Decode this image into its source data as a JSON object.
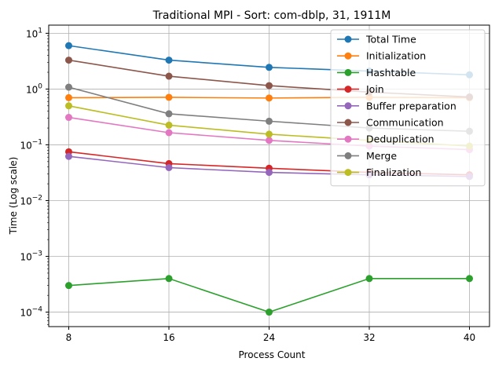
{
  "chart_data": {
    "type": "line",
    "title": "Traditional MPI - Sort: com-dblp, 31, 1911M",
    "xlabel": "Process Count",
    "ylabel": "Time (Log scale)",
    "yscale": "log",
    "x": [
      8,
      16,
      24,
      32,
      40
    ],
    "x_ticks": [
      "8",
      "16",
      "24",
      "32",
      "40"
    ],
    "ylim": [
      5.5e-05,
      14
    ],
    "y_ticks": [
      {
        "value": 0.0001,
        "base": "10",
        "exp": "−4"
      },
      {
        "value": 0.001,
        "base": "10",
        "exp": "−3"
      },
      {
        "value": 0.01,
        "base": "10",
        "exp": "−2"
      },
      {
        "value": 0.1,
        "base": "10",
        "exp": "−1"
      },
      {
        "value": 1,
        "base": "10",
        "exp": "0"
      },
      {
        "value": 10,
        "base": "10",
        "exp": "1"
      }
    ],
    "grid": true,
    "legend_position": "top-right",
    "series": [
      {
        "name": "Total Time",
        "color": "#1f77b4",
        "values": [
          6.0,
          3.3,
          2.45,
          2.1,
          1.8
        ]
      },
      {
        "name": "Initialization",
        "color": "#ff7f0e",
        "values": [
          0.7,
          0.71,
          0.69,
          0.71,
          0.7
        ]
      },
      {
        "name": "Hashtable",
        "color": "#2ca02c",
        "values": [
          0.0003,
          0.0004,
          0.0001,
          0.0004,
          0.0004
        ]
      },
      {
        "name": "Join",
        "color": "#d62728",
        "values": [
          0.075,
          0.046,
          0.038,
          0.032,
          0.029
        ]
      },
      {
        "name": "Buffer preparation",
        "color": "#9467bd",
        "values": [
          0.062,
          0.039,
          0.032,
          0.029,
          0.027
        ]
      },
      {
        "name": "Communication",
        "color": "#8c564b",
        "values": [
          3.3,
          1.7,
          1.15,
          0.88,
          0.72
        ]
      },
      {
        "name": "Deduplication",
        "color": "#e377c2",
        "values": [
          0.31,
          0.165,
          0.12,
          0.095,
          0.082
        ]
      },
      {
        "name": "Merge",
        "color": "#7f7f7f",
        "values": [
          1.08,
          0.36,
          0.265,
          0.2,
          0.175
        ]
      },
      {
        "name": "Finalization",
        "color": "#bcbd22",
        "values": [
          0.5,
          0.225,
          0.155,
          0.12,
          0.095
        ]
      }
    ]
  }
}
